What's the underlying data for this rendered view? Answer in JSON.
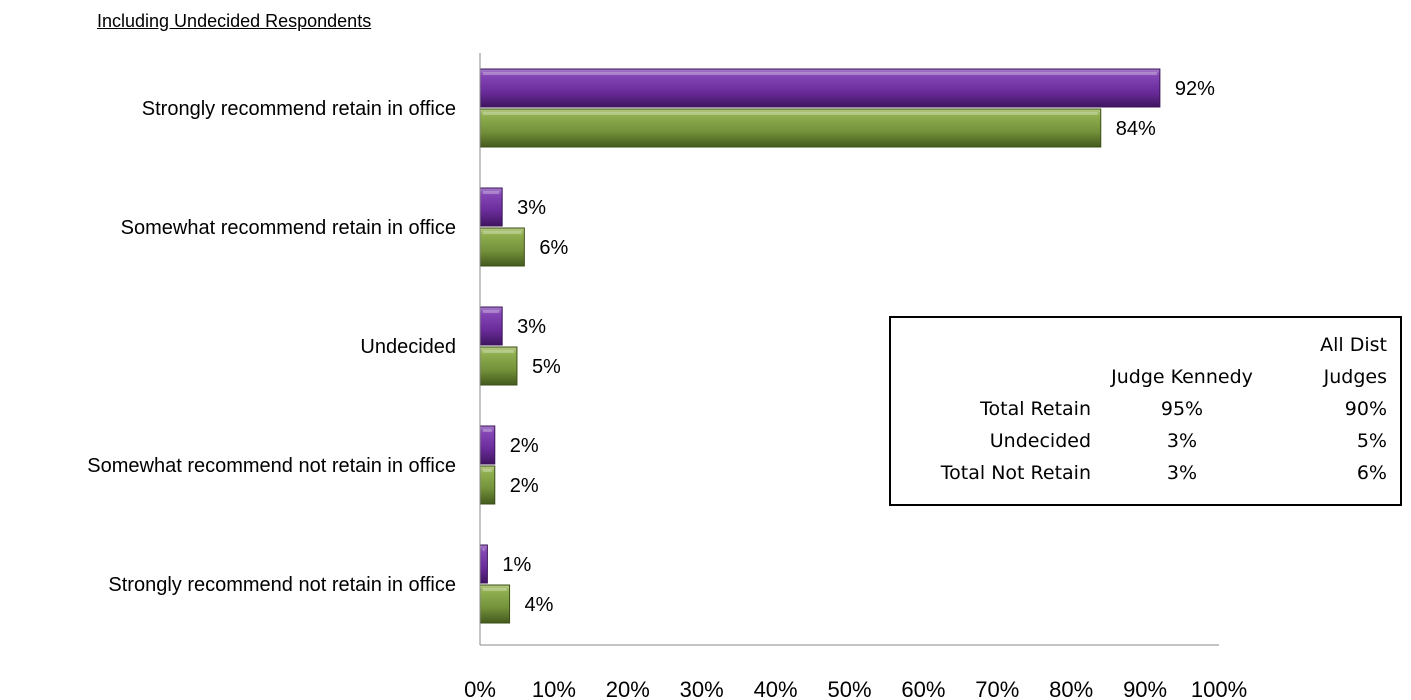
{
  "chart_data": {
    "type": "bar",
    "orientation": "horizontal",
    "subtitle": "Including Undecided Respondents",
    "categories": [
      "Strongly recommend retain in office",
      "Somewhat recommend retain in office",
      "Undecided",
      "Somewhat recommend not retain in office",
      "Strongly recommend not retain in office"
    ],
    "series": [
      {
        "color": "#7030a0",
        "values": [
          92,
          3,
          3,
          2,
          1
        ],
        "labels": [
          "92%",
          "3%",
          "3%",
          "2%",
          "1%"
        ]
      },
      {
        "color": "#77933c",
        "values": [
          84,
          6,
          5,
          2,
          4
        ],
        "labels": [
          "84%",
          "6%",
          "5%",
          "2%",
          "4%"
        ]
      }
    ],
    "xlim": [
      0,
      100
    ],
    "xticks": [
      "0%",
      "10%",
      "20%",
      "30%",
      "40%",
      "50%",
      "60%",
      "70%",
      "80%",
      "90%",
      "100%"
    ],
    "grid": false,
    "legend": "none"
  },
  "summary_table": {
    "header_col1": "Judge Kennedy",
    "header_col2_line1": "All Dist",
    "header_col2_line2": "Judges",
    "rows": [
      {
        "label": "Total Retain",
        "col1": "95%",
        "col2": "90%"
      },
      {
        "label": "Undecided",
        "col1": "3%",
        "col2": "5%"
      },
      {
        "label": "Total Not Retain",
        "col1": "3%",
        "col2": "6%"
      }
    ]
  }
}
